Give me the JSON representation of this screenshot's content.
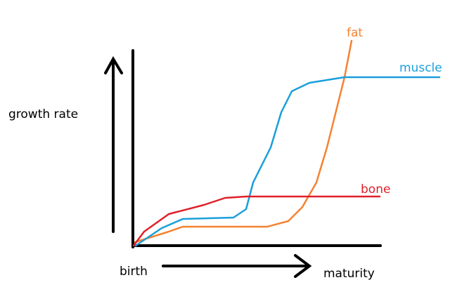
{
  "axes": {
    "y_label": "growth rate",
    "x_start": "birth",
    "x_end": "maturity"
  },
  "curves": [
    {
      "label": "fat"
    },
    {
      "label": "muscle"
    },
    {
      "label": "bone"
    }
  ]
}
